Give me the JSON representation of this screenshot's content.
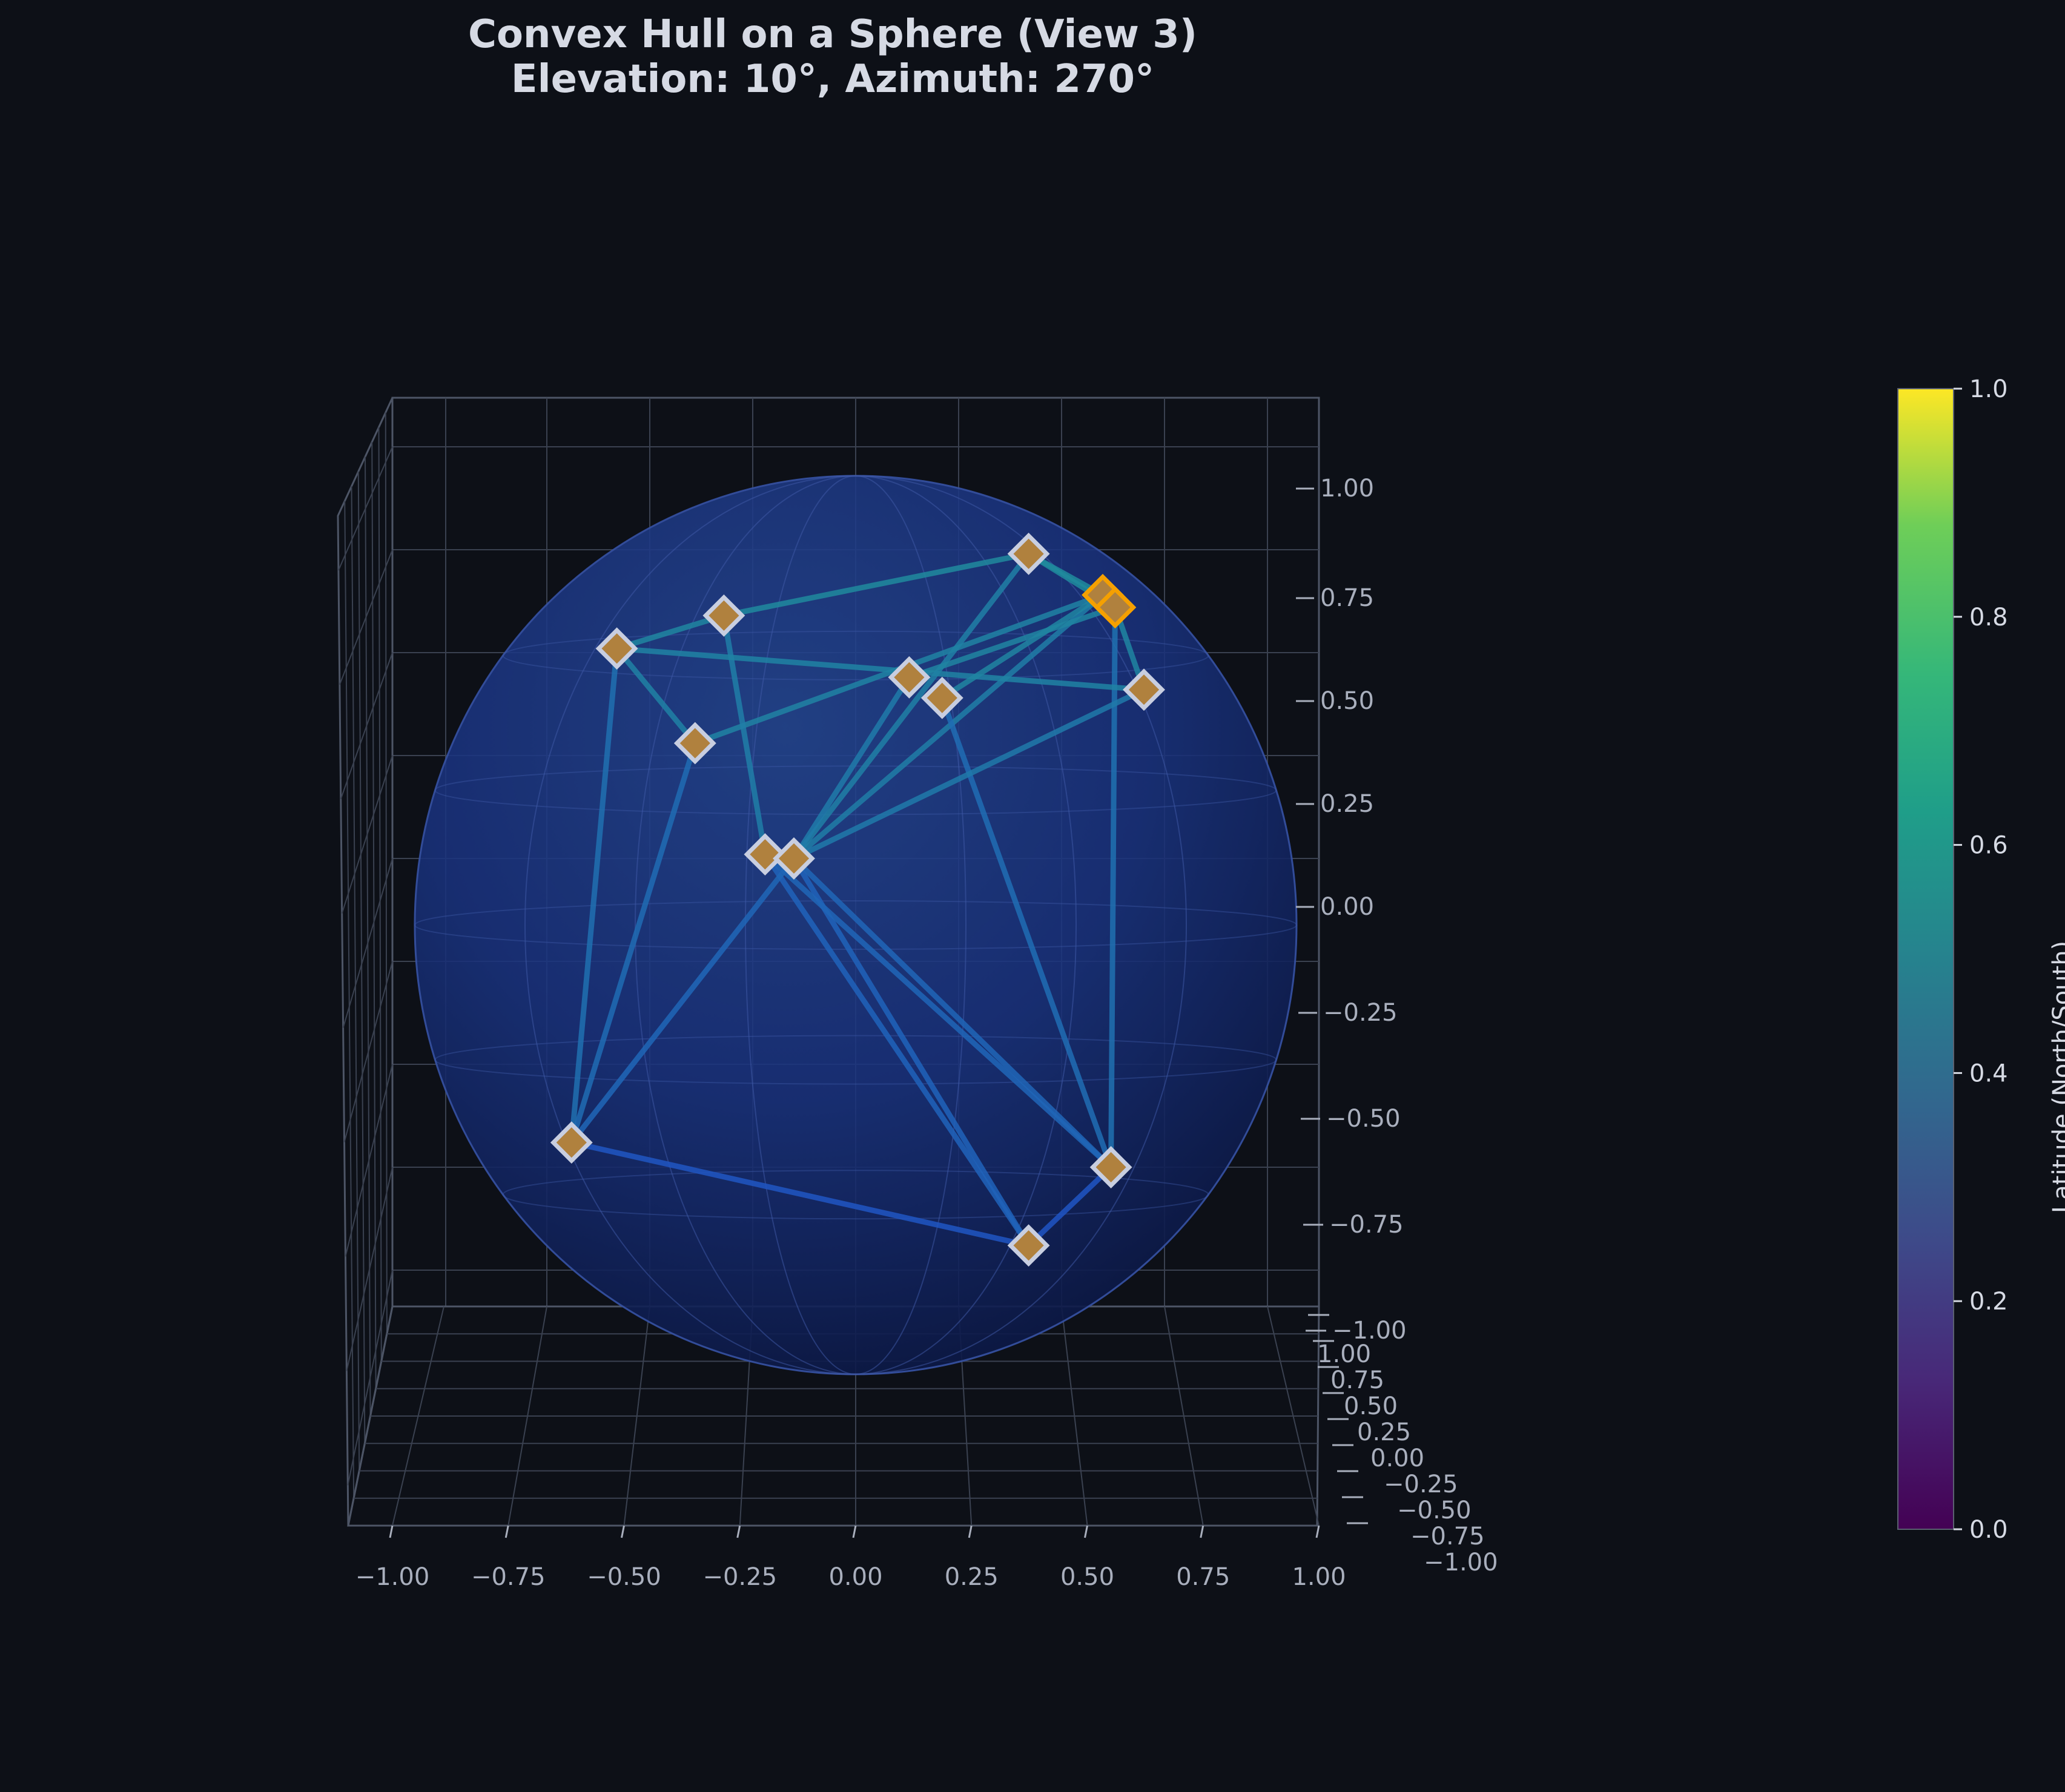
{
  "chart_data": {
    "type": "scatter",
    "title_line1": "Convex Hull on a Sphere (View 3)",
    "title_line2": "Elevation: 10°, Azimuth: 270°",
    "x_ticks": [
      "−1.00",
      "−0.75",
      "−0.50",
      "−0.25",
      "0.00",
      "0.25",
      "0.50",
      "0.75",
      "1.00"
    ],
    "y_ticks": [
      "1.00",
      "0.75",
      "0.50",
      "0.25",
      "0.00",
      "−0.25",
      "−0.50",
      "−0.75",
      "−1.00"
    ],
    "z_ticks": [
      "1.00",
      "0.75",
      "0.50",
      "0.25",
      "0.00",
      "−0.25",
      "−0.50",
      "−0.75",
      "−1.00"
    ],
    "xlim": [
      -1,
      1
    ],
    "zlim": [
      -1,
      1
    ],
    "colorbar": {
      "label": "Latitude (North/South)",
      "ticks": [
        "1.0",
        "0.8",
        "0.6",
        "0.4",
        "0.2",
        "0.0"
      ],
      "range": [
        0,
        1
      ],
      "colormap": "viridis"
    },
    "points": [
      {
        "x": 0.42,
        "z": 0.74
      },
      {
        "x": 0.6,
        "z": 0.64
      },
      {
        "x": 0.63,
        "z": 0.61
      },
      {
        "x": 0.7,
        "z": 0.41
      },
      {
        "x": -0.32,
        "z": 0.59
      },
      {
        "x": -0.58,
        "z": 0.51
      },
      {
        "x": 0.13,
        "z": 0.44
      },
      {
        "x": 0.21,
        "z": 0.39
      },
      {
        "x": -0.39,
        "z": 0.28
      },
      {
        "x": -0.22,
        "z": 0.01
      },
      {
        "x": -0.15,
        "z": 0.0
      },
      {
        "x": -0.69,
        "z": -0.69
      },
      {
        "x": 0.42,
        "z": -0.94
      },
      {
        "x": 0.62,
        "z": -0.75
      }
    ],
    "edges": [
      [
        0,
        4
      ],
      [
        0,
        1
      ],
      [
        0,
        2
      ],
      [
        0,
        10
      ],
      [
        1,
        2
      ],
      [
        1,
        8
      ],
      [
        1,
        10
      ],
      [
        2,
        3
      ],
      [
        2,
        13
      ],
      [
        4,
        5
      ],
      [
        4,
        9
      ],
      [
        5,
        3
      ],
      [
        5,
        8
      ],
      [
        5,
        11
      ],
      [
        6,
        2
      ],
      [
        6,
        10
      ],
      [
        7,
        1
      ],
      [
        7,
        13
      ],
      [
        8,
        11
      ],
      [
        9,
        12
      ],
      [
        10,
        11
      ],
      [
        10,
        12
      ],
      [
        3,
        10
      ],
      [
        11,
        12
      ],
      [
        12,
        13
      ],
      [
        13,
        9
      ],
      [
        13,
        10
      ]
    ],
    "colors": {
      "background": "#0d1017",
      "sphere": "#1a2f80",
      "marker_fill": "#b0813e",
      "marker_edge": "#c8cee0",
      "marker_highlight": "#f5a000"
    }
  }
}
